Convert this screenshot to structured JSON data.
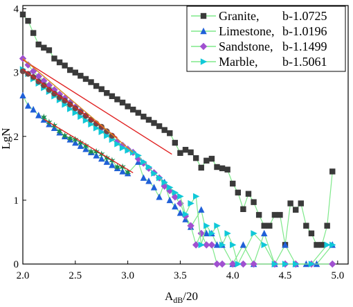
{
  "chart_data": {
    "type": "scatter",
    "xlabel": "A",
    "xlabel_sub": "dB",
    "xlabel_suffix": "/20",
    "ylabel": "LgN",
    "xlim": [
      2.0,
      5.1
    ],
    "ylim": [
      0,
      4.05
    ],
    "x_ticks": [
      "2.0",
      "2.5",
      "3.0",
      "3.5",
      "4.0",
      "4.5",
      "5.0"
    ],
    "y_ticks": [
      "0",
      "1",
      "2",
      "3",
      "4"
    ],
    "legend_position": "top-right",
    "series": [
      {
        "name": "Granite,",
        "b_label": "b-1.0725",
        "marker": "square",
        "marker_color": "#3a3a3a",
        "line_color": "#7ee88a",
        "fit_color": "#e02020",
        "fit": [
          [
            2.0,
            3.2
          ],
          [
            3.42,
            1.72
          ]
        ],
        "points": [
          [
            2.0,
            3.91
          ],
          [
            2.05,
            3.81
          ],
          [
            2.1,
            3.62
          ],
          [
            2.15,
            3.44
          ],
          [
            2.2,
            3.39
          ],
          [
            2.25,
            3.35
          ],
          [
            2.3,
            3.22
          ],
          [
            2.35,
            3.16
          ],
          [
            2.4,
            3.11
          ],
          [
            2.45,
            3.04
          ],
          [
            2.5,
            3.0
          ],
          [
            2.55,
            2.95
          ],
          [
            2.6,
            2.9
          ],
          [
            2.65,
            2.85
          ],
          [
            2.7,
            2.79
          ],
          [
            2.75,
            2.74
          ],
          [
            2.8,
            2.68
          ],
          [
            2.85,
            2.63
          ],
          [
            2.9,
            2.58
          ],
          [
            2.95,
            2.53
          ],
          [
            3.0,
            2.47
          ],
          [
            3.05,
            2.42
          ],
          [
            3.1,
            2.37
          ],
          [
            3.15,
            2.31
          ],
          [
            3.2,
            2.26
          ],
          [
            3.25,
            2.21
          ],
          [
            3.3,
            2.16
          ],
          [
            3.35,
            2.1
          ],
          [
            3.4,
            2.05
          ],
          [
            3.45,
            1.9
          ],
          [
            3.5,
            1.74
          ],
          [
            3.55,
            1.79
          ],
          [
            3.6,
            1.75
          ],
          [
            3.65,
            1.66
          ],
          [
            3.7,
            1.51
          ],
          [
            3.75,
            1.62
          ],
          [
            3.8,
            1.65
          ],
          [
            3.85,
            1.52
          ],
          [
            3.9,
            1.5
          ],
          [
            3.95,
            1.48
          ],
          [
            4.0,
            1.26
          ],
          [
            4.05,
            1.12
          ],
          [
            4.1,
            0.86
          ],
          [
            4.15,
            1.1
          ],
          [
            4.2,
            0.97
          ],
          [
            4.25,
            0.77
          ],
          [
            4.3,
            0.6
          ],
          [
            4.35,
            0.6
          ],
          [
            4.4,
            0.77
          ],
          [
            4.45,
            0.77
          ],
          [
            4.5,
            0.3
          ],
          [
            4.55,
            0.95
          ],
          [
            4.6,
            0.85
          ],
          [
            4.65,
            0.95
          ],
          [
            4.7,
            0.6
          ],
          [
            4.75,
            0.48
          ],
          [
            4.8,
            0.3
          ],
          [
            4.85,
            0.3
          ],
          [
            4.9,
            0.6
          ],
          [
            4.95,
            1.45
          ]
        ]
      },
      {
        "name": "Limestone,",
        "b_label": "b-1.0196",
        "marker": "triangle-up",
        "marker_color": "#2060d8",
        "line_color": "#7ee88a",
        "points": [
          [
            2.0,
            2.64
          ],
          [
            2.05,
            2.48
          ],
          [
            2.1,
            2.42
          ],
          [
            2.15,
            2.33
          ],
          [
            2.2,
            2.26
          ],
          [
            2.25,
            2.19
          ],
          [
            2.3,
            2.13
          ],
          [
            2.35,
            2.06
          ],
          [
            2.4,
            2.0
          ],
          [
            2.45,
            1.95
          ],
          [
            2.5,
            1.9
          ],
          [
            2.55,
            1.85
          ],
          [
            2.6,
            1.8
          ],
          [
            2.65,
            1.75
          ],
          [
            2.7,
            1.7
          ],
          [
            2.75,
            1.65
          ],
          [
            2.8,
            1.6
          ],
          [
            2.85,
            1.55
          ],
          [
            2.9,
            1.5
          ],
          [
            2.95,
            1.45
          ],
          [
            3.0,
            1.42
          ],
          [
            3.1,
            1.6
          ],
          [
            3.15,
            1.35
          ],
          [
            3.2,
            1.3
          ],
          [
            3.25,
            1.2
          ],
          [
            3.3,
            1.05
          ],
          [
            3.35,
            1.28
          ],
          [
            3.4,
            1.0
          ],
          [
            3.45,
            0.9
          ],
          [
            3.5,
            0.8
          ],
          [
            3.55,
            0.7
          ],
          [
            3.6,
            0.58
          ],
          [
            3.7,
            0.85
          ],
          [
            3.75,
            0.48
          ],
          [
            3.8,
            0.48
          ],
          [
            3.85,
            0.3
          ],
          [
            3.9,
            0.3
          ],
          [
            4.0,
            0.0
          ],
          [
            4.1,
            0.3
          ],
          [
            4.2,
            0.0
          ],
          [
            4.3,
            0.48
          ],
          [
            4.4,
            0.0
          ],
          [
            4.5,
            0.3
          ],
          [
            4.6,
            0.0
          ],
          [
            4.7,
            0.0
          ],
          [
            4.8,
            0.0
          ],
          [
            4.95,
            0.3
          ]
        ]
      },
      {
        "name": "Sandstone,",
        "b_label": "b-1.1499",
        "marker": "diamond",
        "marker_color": "#a050d0",
        "line_color": "#7ee88a",
        "points": [
          [
            2.0,
            3.22
          ],
          [
            2.05,
            3.12
          ],
          [
            2.1,
            3.02
          ],
          [
            2.15,
            2.94
          ],
          [
            2.2,
            2.87
          ],
          [
            2.25,
            2.8
          ],
          [
            2.3,
            2.73
          ],
          [
            2.35,
            2.66
          ],
          [
            2.4,
            2.6
          ],
          [
            2.45,
            2.53
          ],
          [
            2.5,
            2.46
          ],
          [
            2.55,
            2.4
          ],
          [
            2.6,
            2.33
          ],
          [
            2.65,
            2.26
          ],
          [
            2.7,
            2.2
          ],
          [
            2.75,
            2.13
          ],
          [
            2.8,
            2.06
          ],
          [
            2.85,
            2.0
          ],
          [
            2.9,
            1.92
          ],
          [
            2.95,
            1.86
          ],
          [
            3.0,
            1.8
          ],
          [
            3.05,
            1.75
          ],
          [
            3.1,
            1.65
          ],
          [
            3.15,
            1.58
          ],
          [
            3.2,
            1.5
          ],
          [
            3.25,
            1.43
          ],
          [
            3.3,
            1.35
          ],
          [
            3.35,
            1.22
          ],
          [
            3.4,
            1.15
          ],
          [
            3.45,
            1.05
          ],
          [
            3.5,
            0.95
          ],
          [
            3.55,
            0.75
          ],
          [
            3.6,
            0.6
          ],
          [
            3.65,
            0.3
          ],
          [
            3.7,
            0.48
          ],
          [
            3.75,
            0.3
          ],
          [
            3.8,
            0.3
          ],
          [
            3.85,
            0.0
          ],
          [
            3.9,
            0.0
          ],
          [
            4.0,
            0.0
          ],
          [
            4.1,
            0.0
          ],
          [
            4.2,
            0.0
          ],
          [
            4.4,
            0.0
          ],
          [
            4.5,
            0.0
          ],
          [
            4.6,
            0.0
          ],
          [
            4.75,
            0.0
          ],
          [
            4.95,
            0.0
          ]
        ]
      },
      {
        "name": "Marble,",
        "b_label": "b-1.5061",
        "marker": "triangle-right",
        "marker_color": "#10c8d8",
        "line_color": "#7ee88a",
        "points": [
          [
            2.0,
            3.05
          ],
          [
            2.05,
            2.98
          ],
          [
            2.1,
            2.9
          ],
          [
            2.15,
            2.83
          ],
          [
            2.2,
            2.76
          ],
          [
            2.25,
            2.7
          ],
          [
            2.3,
            2.63
          ],
          [
            2.35,
            2.57
          ],
          [
            2.4,
            2.5
          ],
          [
            2.45,
            2.43
          ],
          [
            2.5,
            2.37
          ],
          [
            2.55,
            2.31
          ],
          [
            2.6,
            2.25
          ],
          [
            2.65,
            2.19
          ],
          [
            2.7,
            2.13
          ],
          [
            2.75,
            2.07
          ],
          [
            2.8,
            2.01
          ],
          [
            2.85,
            1.95
          ],
          [
            2.9,
            1.88
          ],
          [
            2.95,
            1.82
          ],
          [
            3.0,
            1.78
          ],
          [
            3.05,
            1.75
          ],
          [
            3.1,
            1.7
          ],
          [
            3.15,
            1.6
          ],
          [
            3.2,
            1.52
          ],
          [
            3.25,
            1.42
          ],
          [
            3.3,
            1.35
          ],
          [
            3.35,
            1.28
          ],
          [
            3.4,
            1.2
          ],
          [
            3.45,
            1.12
          ],
          [
            3.5,
            1.06
          ],
          [
            3.55,
            0.78
          ],
          [
            3.6,
            0.95
          ],
          [
            3.65,
            1.06
          ],
          [
            3.7,
            0.3
          ],
          [
            3.75,
            0.6
          ],
          [
            3.8,
            0.48
          ],
          [
            3.85,
            0.6
          ],
          [
            3.9,
            0.3
          ],
          [
            3.95,
            0.48
          ],
          [
            4.0,
            0.3
          ],
          [
            4.05,
            0.0
          ],
          [
            4.2,
            0.48
          ],
          [
            4.3,
            0.3
          ],
          [
            4.4,
            0.0
          ],
          [
            4.5,
            0.0
          ],
          [
            4.6,
            0.0
          ],
          [
            4.75,
            0.0
          ],
          [
            4.9,
            0.3
          ],
          [
            4.95,
            0.3
          ]
        ]
      },
      {
        "marker": "circle",
        "marker_color": "#704848",
        "line_color": "#7ee88a",
        "fit_color": "#e02020",
        "points": [
          [
            2.0,
            3.02
          ],
          [
            2.05,
            2.98
          ],
          [
            2.1,
            2.93
          ],
          [
            2.15,
            2.86
          ],
          [
            2.2,
            2.8
          ],
          [
            2.25,
            2.73
          ],
          [
            2.3,
            2.67
          ],
          [
            2.35,
            2.61
          ],
          [
            2.4,
            2.56
          ],
          [
            2.45,
            2.5
          ],
          [
            2.5,
            2.44
          ],
          [
            2.55,
            2.38
          ],
          [
            2.6,
            2.32
          ],
          [
            2.65,
            2.26
          ],
          [
            2.7,
            2.2
          ],
          [
            2.75,
            2.15
          ],
          [
            2.8,
            2.08
          ],
          [
            2.85,
            2.01
          ]
        ]
      },
      {
        "marker": "star",
        "marker_color": "#1a8a50",
        "line_color": "#7ee88a",
        "fit_color": "#e02020",
        "points": [
          [
            2.2,
            2.3
          ],
          [
            2.25,
            2.22
          ],
          [
            2.3,
            2.17
          ],
          [
            2.35,
            2.08
          ],
          [
            2.4,
            2.01
          ],
          [
            2.45,
            1.97
          ],
          [
            2.5,
            1.95
          ],
          [
            2.55,
            1.9
          ],
          [
            2.6,
            1.85
          ],
          [
            2.65,
            1.76
          ],
          [
            2.7,
            1.76
          ],
          [
            2.75,
            1.72
          ],
          [
            2.8,
            1.66
          ],
          [
            2.85,
            1.62
          ],
          [
            2.9,
            1.52
          ],
          [
            2.95,
            1.52
          ],
          [
            3.0,
            1.44
          ]
        ]
      }
    ],
    "extra_fit_lines": [
      {
        "color": "#e02020",
        "points": [
          [
            2.0,
            3.05
          ],
          [
            2.9,
            1.98
          ]
        ]
      },
      {
        "color": "#e02020",
        "points": [
          [
            2.2,
            2.27
          ],
          [
            3.05,
            1.43
          ]
        ]
      },
      {
        "color": "#d88a20",
        "points": [
          [
            2.0,
            3.22
          ],
          [
            3.05,
            1.75
          ]
        ]
      }
    ]
  }
}
